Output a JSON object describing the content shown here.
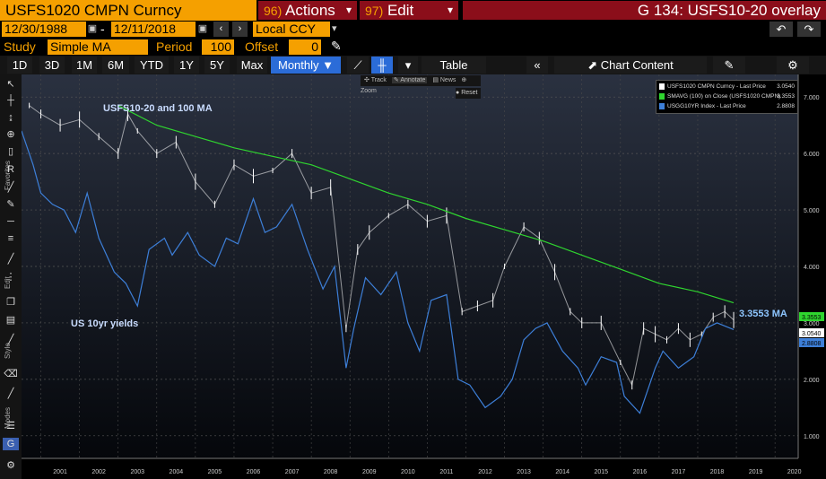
{
  "header": {
    "ticker": "USFS1020 CMPN Curncy",
    "actions_num": "96)",
    "actions_label": "Actions",
    "edit_num": "97)",
    "edit_label": "Edit",
    "graph_title": "G 134: USFS10-20 overlay",
    "date_from": "12/30/1988",
    "date_sep": "-",
    "date_to": "12/11/2018",
    "currency": "Local CCY"
  },
  "study": {
    "study_label": "Study",
    "study_value": "Simple MA",
    "period_label": "Period",
    "period_value": "100",
    "offset_label": "Offset",
    "offset_value": "0"
  },
  "toolbar": {
    "ranges": [
      "1D",
      "3D",
      "1M",
      "6M",
      "YTD",
      "1Y",
      "5Y",
      "Max"
    ],
    "frequency": "Monthly",
    "table_label": "Table",
    "chart_content_label": "Chart Content"
  },
  "tools_menu": {
    "track": "Track",
    "annotate": "Annotate",
    "news": "News",
    "zoom": "Zoom",
    "reset": "Reset"
  },
  "sidebar": {
    "favorites": "Favorites",
    "edit": "Edit",
    "style": "Style",
    "modes": "Modes"
  },
  "colors": {
    "background": "#000000",
    "price_line": "#ffffff",
    "ma_line": "#2fd52f",
    "yield_line": "#3d7fd8",
    "annotation": "#c9dcff",
    "ma_annotation": "#8ec6ff",
    "accent": "#f5a000",
    "title_bar": "#8b0e1a"
  },
  "chart_data": {
    "type": "line",
    "annotations": {
      "top": "USFS10-20 and 100 MA",
      "left": "US 10yr yields",
      "right": "3.3553 MA"
    },
    "legend": [
      {
        "name": "USFS1020 CMPN Curncy - Last Price",
        "value": "3.0540",
        "color": "#ffffff"
      },
      {
        "name": "SMAVG (100)  on Close (USFS1020 CMPN)",
        "value": "3.3553",
        "color": "#2fd52f"
      },
      {
        "name": "USGG10YR Index - Last Price",
        "value": "2.8808",
        "color": "#3d7fd8"
      }
    ],
    "legend_position": "top-right",
    "last_value_tags": [
      {
        "value": "3.3553",
        "color": "#2fd52f"
      },
      {
        "value": "3.0540",
        "color": "#ffffff"
      },
      {
        "value": "2.8808",
        "color": "#3d7fd8"
      }
    ],
    "x_ticks": [
      "2001",
      "2002",
      "2003",
      "2004",
      "2005",
      "2006",
      "2007",
      "2008",
      "2009",
      "2010",
      "2011",
      "2012",
      "2013",
      "2014",
      "2015",
      "2016",
      "2017",
      "2018",
      "2019",
      "2020"
    ],
    "y_ticks": [
      "7.000",
      "6.000",
      "5.000",
      "4.000",
      "3.000",
      "2.000",
      "1.000"
    ],
    "xlim": [
      2000.5,
      2020.6
    ],
    "ylim": [
      0.6,
      7.4
    ],
    "grid": true,
    "series": [
      {
        "name": "USFS1020 CMPN Curncy",
        "style": "ohlc",
        "color": "#ffffff",
        "x": [
          2000.7,
          2001.0,
          2001.5,
          2002.0,
          2002.5,
          2003.0,
          2003.25,
          2003.5,
          2004.0,
          2004.5,
          2005.0,
          2005.5,
          2006.0,
          2006.5,
          2007.0,
          2007.5,
          2008.0,
          2008.5,
          2008.9,
          2009.2,
          2009.5,
          2010.0,
          2010.5,
          2011.0,
          2011.5,
          2011.9,
          2012.3,
          2012.7,
          2013.0,
          2013.5,
          2013.9,
          2014.3,
          2014.7,
          2015.0,
          2015.5,
          2016.0,
          2016.3,
          2016.6,
          2016.9,
          2017.2,
          2017.5,
          2017.8,
          2018.1,
          2018.4,
          2018.7,
          2018.93
        ],
        "y": [
          6.85,
          6.7,
          6.5,
          6.6,
          6.3,
          6.0,
          6.7,
          6.4,
          6.0,
          6.2,
          5.5,
          5.1,
          5.8,
          5.6,
          5.7,
          6.0,
          5.3,
          5.4,
          2.9,
          4.3,
          4.6,
          4.9,
          5.1,
          4.8,
          4.9,
          3.2,
          3.3,
          3.4,
          4.0,
          4.7,
          4.5,
          3.9,
          3.2,
          3.0,
          3.0,
          2.3,
          1.9,
          2.9,
          2.8,
          2.7,
          2.9,
          2.7,
          2.8,
          3.1,
          3.2,
          3.05
        ]
      },
      {
        "name": "SMAVG (100) on Close",
        "style": "line",
        "color": "#2fd52f",
        "x": [
          2003.0,
          2004.0,
          2005.0,
          2006.0,
          2007.0,
          2008.0,
          2009.0,
          2010.0,
          2011.0,
          2012.0,
          2013.0,
          2014.0,
          2015.0,
          2016.0,
          2017.0,
          2018.0,
          2018.93
        ],
        "y": [
          6.85,
          6.5,
          6.3,
          6.1,
          5.95,
          5.8,
          5.55,
          5.3,
          5.1,
          4.85,
          4.65,
          4.45,
          4.2,
          3.95,
          3.7,
          3.55,
          3.3553
        ]
      },
      {
        "name": "USGG10YR Index",
        "style": "line",
        "color": "#3d7fd8",
        "x": [
          2000.5,
          2000.8,
          2001.0,
          2001.3,
          2001.6,
          2001.9,
          2002.2,
          2002.5,
          2002.9,
          2003.2,
          2003.5,
          2003.8,
          2004.2,
          2004.4,
          2004.8,
          2005.1,
          2005.5,
          2005.8,
          2006.1,
          2006.5,
          2006.8,
          2007.1,
          2007.5,
          2007.9,
          2008.3,
          2008.6,
          2008.9,
          2009.1,
          2009.4,
          2009.8,
          2010.2,
          2010.5,
          2010.8,
          2011.1,
          2011.5,
          2011.8,
          2012.1,
          2012.5,
          2012.9,
          2013.2,
          2013.5,
          2013.8,
          2014.1,
          2014.5,
          2014.9,
          2015.1,
          2015.5,
          2015.9,
          2016.1,
          2016.5,
          2016.9,
          2017.1,
          2017.5,
          2017.9,
          2018.2,
          2018.5,
          2018.93
        ],
        "y": [
          6.4,
          5.8,
          5.3,
          5.1,
          5.0,
          4.6,
          5.3,
          4.5,
          3.9,
          3.7,
          3.3,
          4.3,
          4.5,
          4.2,
          4.6,
          4.2,
          4.0,
          4.5,
          4.4,
          5.2,
          4.6,
          4.7,
          5.1,
          4.3,
          3.6,
          4.0,
          2.2,
          2.9,
          3.8,
          3.5,
          3.9,
          3.0,
          2.5,
          3.4,
          3.5,
          2.0,
          1.9,
          1.5,
          1.7,
          2.0,
          2.7,
          2.9,
          3.0,
          2.5,
          2.2,
          1.9,
          2.4,
          2.3,
          1.7,
          1.4,
          2.2,
          2.5,
          2.2,
          2.4,
          2.9,
          3.0,
          2.8808
        ]
      }
    ]
  }
}
